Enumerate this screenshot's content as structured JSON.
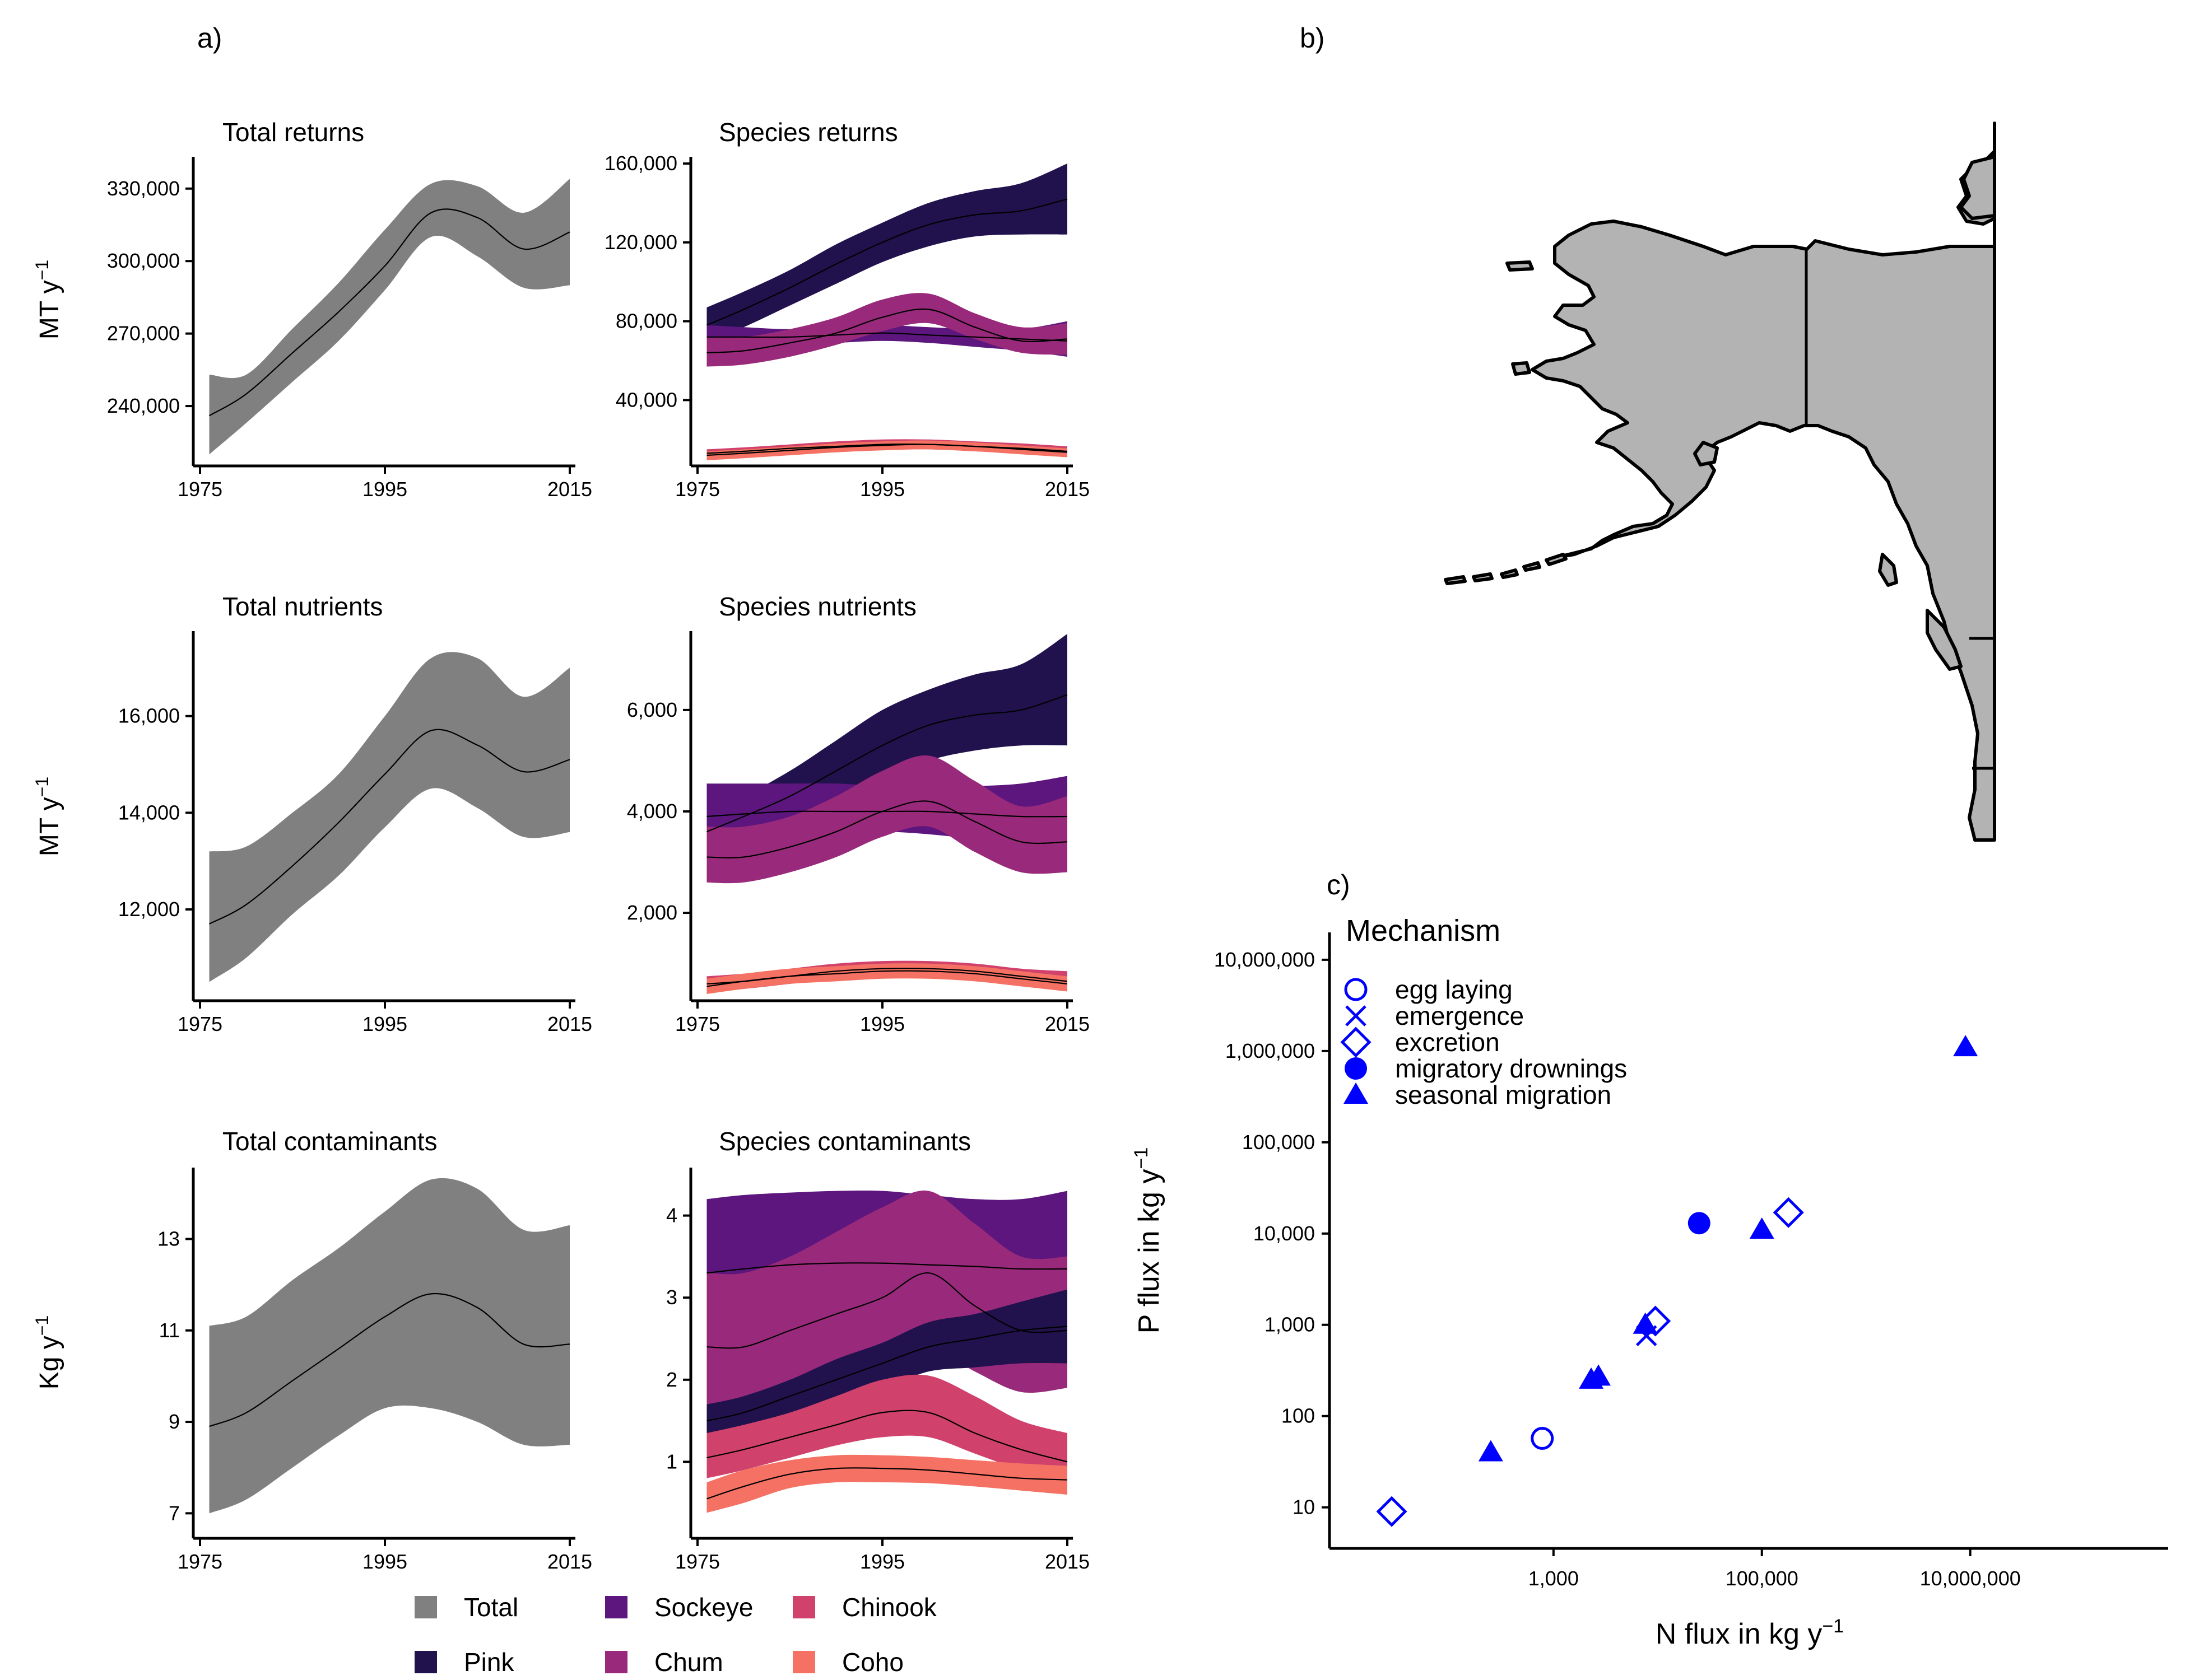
{
  "panel_labels": {
    "a": "a)",
    "b": "b)",
    "c": "c)"
  },
  "legend": [
    {
      "name": "Total",
      "color": "#808080"
    },
    {
      "name": "Sockeye",
      "color": "#5C167D"
    },
    {
      "name": "Chinook",
      "color": "#D0416C"
    },
    {
      "name": "Pink",
      "color": "#21124E"
    },
    {
      "name": "Chum",
      "color": "#992A7B"
    },
    {
      "name": "Coho",
      "color": "#F47163"
    }
  ],
  "map": {
    "fill": "#b3b3b3",
    "stroke": "#000000"
  },
  "chart_data": [
    {
      "id": "total-returns",
      "type": "area",
      "title": "Total returns",
      "ylabel": "MT y",
      "ylabel_sup": "−1",
      "xlim": [
        1975,
        2015
      ],
      "ylim": [
        218000,
        342000
      ],
      "xticks": [
        1975,
        1995,
        2015
      ],
      "xtick_labels": [
        "1975",
        "1995",
        "2015"
      ],
      "yticks": [
        240000,
        270000,
        300000,
        330000
      ],
      "ytick_labels": [
        "240,000",
        "270,000",
        "300,000",
        "330,000"
      ],
      "x": [
        1976,
        1980,
        1985,
        1990,
        1995,
        2000,
        2005,
        2010,
        2015
      ],
      "series": [
        {
          "color": "#808080",
          "mean": [
            236000,
            245000,
            262000,
            279000,
            298000,
            320000,
            318000,
            305000,
            312000
          ],
          "lower": [
            220000,
            233000,
            250000,
            267000,
            288000,
            310000,
            302000,
            289000,
            290000
          ],
          "upper": [
            253000,
            253000,
            272000,
            291000,
            313000,
            332000,
            331000,
            320000,
            334000
          ]
        }
      ]
    },
    {
      "id": "species-returns",
      "type": "area",
      "title": "Species returns",
      "xlim": [
        1975,
        2015
      ],
      "ylim": [
        10000,
        162000
      ],
      "xticks": [
        1975,
        1995,
        2015
      ],
      "xtick_labels": [
        "1975",
        "1995",
        "2015"
      ],
      "yticks": [
        40000,
        80000,
        120000,
        160000
      ],
      "ytick_labels": [
        "40,000",
        "80,000",
        "120,000",
        "160,000"
      ],
      "x": [
        1976,
        1980,
        1985,
        1990,
        1995,
        2000,
        2005,
        2010,
        2015
      ],
      "series": [
        {
          "name": "Pink",
          "color": "#21124E",
          "mean": [
            78000,
            86000,
            97000,
            109000,
            120000,
            129000,
            134000,
            136000,
            142000
          ],
          "lower": [
            70000,
            77000,
            88000,
            99000,
            110000,
            118000,
            123000,
            124000,
            124000
          ],
          "upper": [
            87000,
            95000,
            106000,
            119000,
            130000,
            140000,
            146000,
            150000,
            160000
          ]
        },
        {
          "name": "Sockeye",
          "color": "#5C167D",
          "mean": [
            72000,
            72000,
            72000,
            73000,
            74000,
            73000,
            72000,
            71000,
            70000
          ],
          "lower": [
            67000,
            67000,
            68000,
            69000,
            70000,
            69000,
            67000,
            65000,
            62000
          ],
          "upper": [
            78000,
            77000,
            76000,
            77000,
            78000,
            77000,
            76000,
            76000,
            80000
          ]
        },
        {
          "name": "Chum",
          "color": "#992A7B",
          "mean": [
            64000,
            65000,
            69000,
            74000,
            82000,
            86000,
            77000,
            70000,
            71000
          ],
          "lower": [
            57000,
            58000,
            62000,
            68000,
            75000,
            79000,
            71000,
            64000,
            63000
          ],
          "upper": [
            72000,
            72000,
            76000,
            82000,
            91000,
            94000,
            84000,
            77000,
            79000
          ]
        },
        {
          "name": "Chinook",
          "color": "#D0416C",
          "mean": [
            13000,
            14000,
            15500,
            16500,
            17500,
            17500,
            16500,
            15500,
            14000
          ],
          "lower": [
            10500,
            11500,
            13000,
            14000,
            15000,
            15000,
            14000,
            13000,
            11500
          ],
          "upper": [
            15000,
            16000,
            17500,
            19000,
            20000,
            20000,
            19000,
            18000,
            16500
          ]
        },
        {
          "name": "Coho",
          "color": "#F47163",
          "mean": [
            12000,
            13000,
            14500,
            16000,
            17000,
            17500,
            16500,
            15000,
            13500
          ],
          "lower": [
            9500,
            10500,
            12000,
            13500,
            14500,
            15000,
            14000,
            12500,
            11000
          ],
          "upper": [
            14000,
            15000,
            16500,
            18000,
            19000,
            19500,
            18500,
            17000,
            15500
          ]
        }
      ]
    },
    {
      "id": "total-nutrients",
      "type": "area",
      "title": "Total nutrients",
      "ylabel": "MT y",
      "ylabel_sup": "−1",
      "xlim": [
        1975,
        2015
      ],
      "ylim": [
        10250,
        17700
      ],
      "xticks": [
        1975,
        1995,
        2015
      ],
      "xtick_labels": [
        "1975",
        "1995",
        "2015"
      ],
      "yticks": [
        12000,
        14000,
        16000
      ],
      "ytick_labels": [
        "12,000",
        "14,000",
        "16,000"
      ],
      "x": [
        1976,
        1980,
        1985,
        1990,
        1995,
        2000,
        2005,
        2010,
        2015
      ],
      "series": [
        {
          "color": "#808080",
          "mean": [
            11700,
            12100,
            12900,
            13800,
            14800,
            15700,
            15400,
            14850,
            15100
          ],
          "lower": [
            10500,
            11000,
            11900,
            12700,
            13700,
            14500,
            14100,
            13500,
            13600
          ],
          "upper": [
            13200,
            13300,
            14000,
            14800,
            16000,
            17200,
            17200,
            16400,
            17000
          ]
        }
      ]
    },
    {
      "id": "species-nutrients",
      "type": "area",
      "title": "Species nutrients",
      "xlim": [
        1975,
        2015
      ],
      "ylim": [
        400,
        7500
      ],
      "xticks": [
        1975,
        1995,
        2015
      ],
      "xtick_labels": [
        "1975",
        "1995",
        "2015"
      ],
      "yticks": [
        2000,
        4000,
        6000
      ],
      "ytick_labels": [
        "2,000",
        "4,000",
        "6,000"
      ],
      "x": [
        1976,
        1980,
        1985,
        1990,
        1995,
        2000,
        2005,
        2010,
        2015
      ],
      "series": [
        {
          "name": "Pink",
          "color": "#21124E",
          "mean": [
            3600,
            3900,
            4300,
            4800,
            5300,
            5700,
            5900,
            6000,
            6300
          ],
          "lower": [
            3200,
            3500,
            3800,
            4200,
            4600,
            5000,
            5200,
            5300,
            5300
          ],
          "upper": [
            4000,
            4300,
            4800,
            5400,
            6000,
            6400,
            6700,
            6900,
            7500
          ]
        },
        {
          "name": "Sockeye",
          "color": "#5C167D",
          "mean": [
            3900,
            3950,
            4000,
            4000,
            4000,
            4000,
            3950,
            3900,
            3900
          ],
          "lower": [
            3300,
            3400,
            3500,
            3550,
            3600,
            3550,
            3450,
            3300,
            3200
          ],
          "upper": [
            4550,
            4550,
            4550,
            4550,
            4500,
            4500,
            4500,
            4550,
            4700
          ]
        },
        {
          "name": "Chum",
          "color": "#992A7B",
          "mean": [
            3100,
            3100,
            3300,
            3600,
            4000,
            4200,
            3800,
            3400,
            3400
          ],
          "lower": [
            2600,
            2600,
            2800,
            3100,
            3500,
            3700,
            3200,
            2800,
            2800
          ],
          "upper": [
            3700,
            3700,
            3900,
            4300,
            4800,
            5100,
            4600,
            4100,
            4300
          ]
        },
        {
          "name": "Chinook",
          "color": "#D0416C",
          "mean": [
            600,
            650,
            750,
            850,
            900,
            900,
            850,
            750,
            650
          ],
          "lower": [
            450,
            500,
            600,
            700,
            750,
            750,
            700,
            600,
            500
          ],
          "upper": [
            750,
            800,
            900,
            1000,
            1050,
            1050,
            1000,
            900,
            850
          ]
        },
        {
          "name": "Coho",
          "color": "#F47163",
          "mean": [
            550,
            650,
            750,
            800,
            850,
            850,
            800,
            700,
            600
          ],
          "lower": [
            400,
            500,
            600,
            650,
            700,
            700,
            650,
            550,
            450
          ],
          "upper": [
            700,
            800,
            900,
            950,
            1000,
            1000,
            950,
            850,
            750
          ]
        }
      ]
    },
    {
      "id": "total-contaminants",
      "type": "area",
      "title": "Total contaminants",
      "ylabel": "Kg y",
      "ylabel_sup": "−1",
      "xlim": [
        1975,
        2015
      ],
      "ylim": [
        6600,
        14500
      ],
      "xticks": [
        1975,
        1995,
        2015
      ],
      "xtick_labels": [
        "1975",
        "1995",
        "2015"
      ],
      "yticks": [
        7000,
        9000,
        11000,
        13000
      ],
      "ytick_labels": [
        "7",
        "9",
        "11",
        "13"
      ],
      "x": [
        1976,
        1980,
        1985,
        1990,
        1995,
        2000,
        2005,
        2010,
        2015
      ],
      "series": [
        {
          "color": "#808080",
          "mean": [
            8900,
            9200,
            9900,
            10600,
            11300,
            11800,
            11500,
            10700,
            10700
          ],
          "lower": [
            7000,
            7300,
            8000,
            8700,
            9300,
            9300,
            9000,
            8500,
            8500
          ],
          "upper": [
            11100,
            11300,
            12100,
            12800,
            13600,
            14300,
            14100,
            13200,
            13300
          ]
        }
      ]
    },
    {
      "id": "species-contaminants",
      "type": "area",
      "title": "Species contaminants",
      "xlim": [
        1975,
        2015
      ],
      "ylim": [
        0.15,
        4.55
      ],
      "xticks": [
        1975,
        1995,
        2015
      ],
      "xtick_labels": [
        "1975",
        "1995",
        "2015"
      ],
      "yticks": [
        1,
        2,
        3,
        4
      ],
      "ytick_labels": [
        "1",
        "2",
        "3",
        "4"
      ],
      "x": [
        1976,
        1980,
        1985,
        1990,
        1995,
        2000,
        2005,
        2010,
        2015
      ],
      "series": [
        {
          "name": "Sockeye",
          "color": "#5C167D",
          "mean": [
            3.3,
            3.35,
            3.4,
            3.42,
            3.42,
            3.4,
            3.38,
            3.35,
            3.35
          ],
          "lower": [
            2.3,
            2.35,
            2.45,
            2.55,
            2.6,
            2.5,
            2.4,
            2.3,
            2.3
          ],
          "upper": [
            4.2,
            4.25,
            4.28,
            4.3,
            4.3,
            4.25,
            4.2,
            4.2,
            4.3
          ]
        },
        {
          "name": "Chum",
          "color": "#992A7B",
          "mean": [
            2.4,
            2.4,
            2.6,
            2.8,
            3.0,
            3.3,
            2.9,
            2.6,
            2.6
          ],
          "lower": [
            1.7,
            1.7,
            1.85,
            2.0,
            2.2,
            2.4,
            2.1,
            1.85,
            1.9
          ],
          "upper": [
            3.3,
            3.3,
            3.5,
            3.8,
            4.1,
            4.3,
            3.9,
            3.5,
            3.5
          ]
        },
        {
          "name": "Pink",
          "color": "#21124E",
          "mean": [
            1.5,
            1.6,
            1.8,
            2.0,
            2.2,
            2.4,
            2.5,
            2.6,
            2.65
          ],
          "lower": [
            1.3,
            1.4,
            1.55,
            1.75,
            1.9,
            2.1,
            2.15,
            2.2,
            2.2
          ],
          "upper": [
            1.7,
            1.8,
            2.0,
            2.25,
            2.45,
            2.7,
            2.8,
            2.95,
            3.1
          ]
        },
        {
          "name": "Chinook",
          "color": "#D0416C",
          "mean": [
            1.05,
            1.15,
            1.3,
            1.45,
            1.6,
            1.6,
            1.35,
            1.15,
            1.0
          ],
          "lower": [
            0.8,
            0.9,
            1.05,
            1.2,
            1.3,
            1.3,
            1.1,
            0.9,
            0.75
          ],
          "upper": [
            1.35,
            1.45,
            1.6,
            1.8,
            2.0,
            2.05,
            1.8,
            1.5,
            1.35
          ]
        },
        {
          "name": "Coho",
          "color": "#F47163",
          "mean": [
            0.55,
            0.7,
            0.85,
            0.92,
            0.92,
            0.9,
            0.85,
            0.8,
            0.78
          ],
          "lower": [
            0.38,
            0.5,
            0.68,
            0.75,
            0.75,
            0.74,
            0.7,
            0.65,
            0.6
          ],
          "upper": [
            0.75,
            0.9,
            1.02,
            1.08,
            1.08,
            1.06,
            1.02,
            0.98,
            0.95
          ]
        }
      ]
    },
    {
      "id": "flux-scatter",
      "type": "scatter",
      "xlabel": "N flux in kg y",
      "xlabel_sup": "−1",
      "ylabel": "P flux in kg y",
      "ylabel_sup": "−1",
      "xscale": "log",
      "yscale": "log",
      "xlim_log10": [
        0.85,
        8.9
      ],
      "ylim_log10": [
        0.55,
        7.3
      ],
      "xticks_log10": [
        3,
        5,
        7
      ],
      "xtick_labels": [
        "1,000",
        "100,000",
        "10,000,000"
      ],
      "yticks_log10": [
        1,
        2,
        3,
        4,
        5,
        6,
        7
      ],
      "ytick_labels": [
        "10",
        "100",
        "1,000",
        "10,000",
        "100,000",
        "1,000,000",
        "10,000,000"
      ],
      "color": "#0000FF",
      "legend_title": "Mechanism",
      "legend_position": "top-left",
      "legend_items": [
        {
          "label": "egg laying",
          "shape": "circle-open"
        },
        {
          "label": "emergence",
          "shape": "cross"
        },
        {
          "label": "excretion",
          "shape": "diamond-open"
        },
        {
          "label": "migratory drownings",
          "shape": "circle-filled"
        },
        {
          "label": "seasonal migration",
          "shape": "triangle-filled"
        }
      ],
      "points": [
        {
          "mechanism": "excretion",
          "shape": "diamond-open",
          "x": 28,
          "y": 9
        },
        {
          "mechanism": "seasonal migration",
          "shape": "triangle-filled",
          "x": 250,
          "y": 40
        },
        {
          "mechanism": "egg laying",
          "shape": "circle-open",
          "x": 780,
          "y": 57
        },
        {
          "mechanism": "seasonal migration",
          "shape": "triangle-filled",
          "x": 2300,
          "y": 250
        },
        {
          "mechanism": "seasonal migration",
          "shape": "triangle-filled",
          "x": 2700,
          "y": 270
        },
        {
          "mechanism": "emergence",
          "shape": "cross",
          "x": 7800,
          "y": 760
        },
        {
          "mechanism": "seasonal migration",
          "shape": "triangle-filled",
          "x": 7600,
          "y": 1000
        },
        {
          "mechanism": "excretion",
          "shape": "diamond-open",
          "x": 9500,
          "y": 1100
        },
        {
          "mechanism": "migratory drownings",
          "shape": "circle-filled",
          "x": 25000,
          "y": 13000
        },
        {
          "mechanism": "seasonal migration",
          "shape": "triangle-filled",
          "x": 100000,
          "y": 11000
        },
        {
          "mechanism": "excretion",
          "shape": "diamond-open",
          "x": 180000,
          "y": 17000
        },
        {
          "mechanism": "seasonal migration",
          "shape": "triangle-filled",
          "x": 9000000,
          "y": 1100000
        }
      ]
    }
  ]
}
